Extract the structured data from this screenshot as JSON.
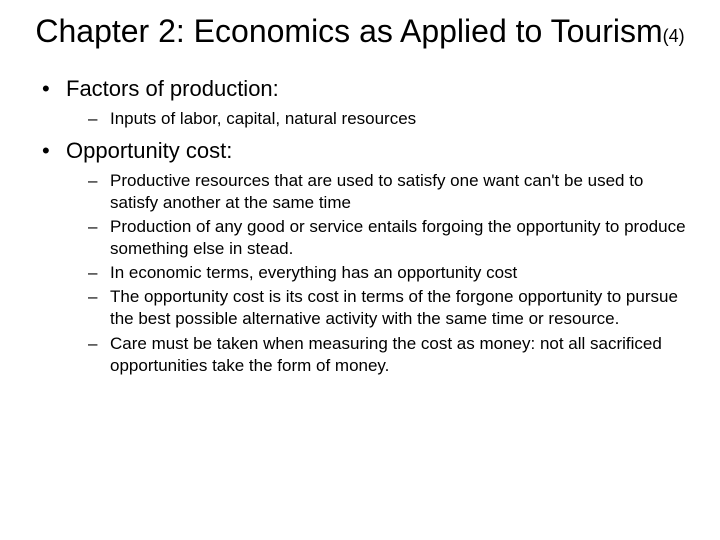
{
  "title": {
    "main": "Chapter 2: Economics as Applied to Tourism",
    "suffix": "(4)"
  },
  "bullets": [
    {
      "text": "Factors of production:",
      "children": [
        "Inputs of labor, capital, natural resources"
      ]
    },
    {
      "text": "Opportunity cost:",
      "children": [
        "Productive resources that are used to satisfy one want can't be used to satisfy another at the same time",
        "Production of any good or service entails forgoing the opportunity to produce something else in stead.",
        "In economic terms, everything has an opportunity cost",
        "The opportunity cost is its cost in terms of the forgone opportunity to pursue the best possible alternative activity with the same time or resource.",
        "Care must be taken when measuring the cost as money: not all sacrificed opportunities take the form of money."
      ]
    }
  ],
  "style": {
    "background_color": "#ffffff",
    "text_color": "#000000",
    "title_fontsize": 32,
    "suffix_fontsize": 18,
    "level1_fontsize": 22,
    "level2_fontsize": 17,
    "font_family": "Arial"
  }
}
